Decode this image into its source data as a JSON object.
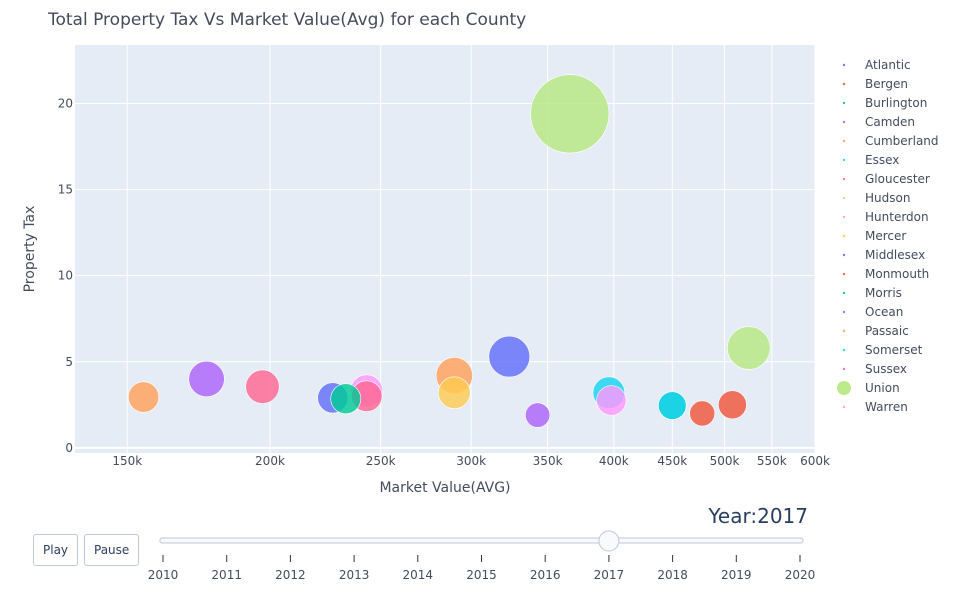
{
  "chart_data": {
    "type": "scatter",
    "title": "Total Property Tax Vs Market Value(Avg) for each County",
    "xlabel": "Market Value(AVG)",
    "ylabel": "Property Tax",
    "x_scale": "log",
    "xlim": [
      135000,
      600000
    ],
    "ylim": [
      -0.3,
      23.4
    ],
    "grid": true,
    "legend_position": "right",
    "x_ticks": [
      {
        "value": 150000,
        "label": "150k"
      },
      {
        "value": 200000,
        "label": "200k"
      },
      {
        "value": 250000,
        "label": "250k"
      },
      {
        "value": 300000,
        "label": "300k"
      },
      {
        "value": 350000,
        "label": "350k"
      },
      {
        "value": 400000,
        "label": "400k"
      },
      {
        "value": 450000,
        "label": "450k"
      },
      {
        "value": 500000,
        "label": "500k"
      },
      {
        "value": 550000,
        "label": "550k"
      },
      {
        "value": 600000,
        "label": "600k"
      }
    ],
    "y_ticks": [
      0,
      5,
      10,
      15,
      20
    ],
    "series": [
      {
        "name": "Atlantic",
        "color": "#636efa",
        "x": 227000,
        "y": 2.9
      },
      {
        "name": "Bergen",
        "color": "#ef553b",
        "x": 508000,
        "y": 2.5
      },
      {
        "name": "Burlington",
        "color": "#00cc96",
        "x": 233000,
        "y": 2.85
      },
      {
        "name": "Camden",
        "color": "#ab63fa",
        "x": 176000,
        "y": 4.0
      },
      {
        "name": "Cumberland",
        "color": "#ffa15a",
        "x": 155000,
        "y": 2.95
      },
      {
        "name": "Essex",
        "color": "#19d3f3",
        "x": 396000,
        "y": 3.2
      },
      {
        "name": "Gloucester",
        "color": "#ff6692",
        "x": 243000,
        "y": 3.0
      },
      {
        "name": "Hudson",
        "color": "#b6e880",
        "x": 366000,
        "y": 19.4
      },
      {
        "name": "Hunterdon",
        "color": "#ff97ff",
        "x": 398000,
        "y": 2.75
      },
      {
        "name": "Mercer",
        "color": "#fecb52",
        "x": 290000,
        "y": 3.2
      },
      {
        "name": "Middlesex",
        "color": "#636efa",
        "x": 324000,
        "y": 5.3
      },
      {
        "name": "Monmouth",
        "color": "#ef553b",
        "x": 478000,
        "y": 2.0
      },
      {
        "name": "Morris",
        "color": "#00cc96",
        "x": 450000,
        "y": 2.45
      },
      {
        "name": "Ocean",
        "color": "#ab63fa",
        "x": 343000,
        "y": 1.9
      },
      {
        "name": "Passaic",
        "color": "#ffa15a",
        "x": 290000,
        "y": 4.2
      },
      {
        "name": "Somerset",
        "color": "#19d3f3",
        "x": 450000,
        "y": 2.45
      },
      {
        "name": "Sussex",
        "color": "#ff6692",
        "x": 197000,
        "y": 3.55
      },
      {
        "name": "Union",
        "color": "#b6e880",
        "x": 525000,
        "y": 5.8
      },
      {
        "name": "Warren",
        "color": "#ff97ff",
        "x": 243000,
        "y": 3.3
      }
    ]
  },
  "legend": {
    "highlighted": "Union"
  },
  "controls": {
    "play_label": "Play",
    "pause_label": "Pause",
    "year_prefix": "Year:",
    "current_year": "2017",
    "years": [
      "2010",
      "2011",
      "2012",
      "2013",
      "2014",
      "2015",
      "2016",
      "2017",
      "2018",
      "2019",
      "2020"
    ]
  }
}
